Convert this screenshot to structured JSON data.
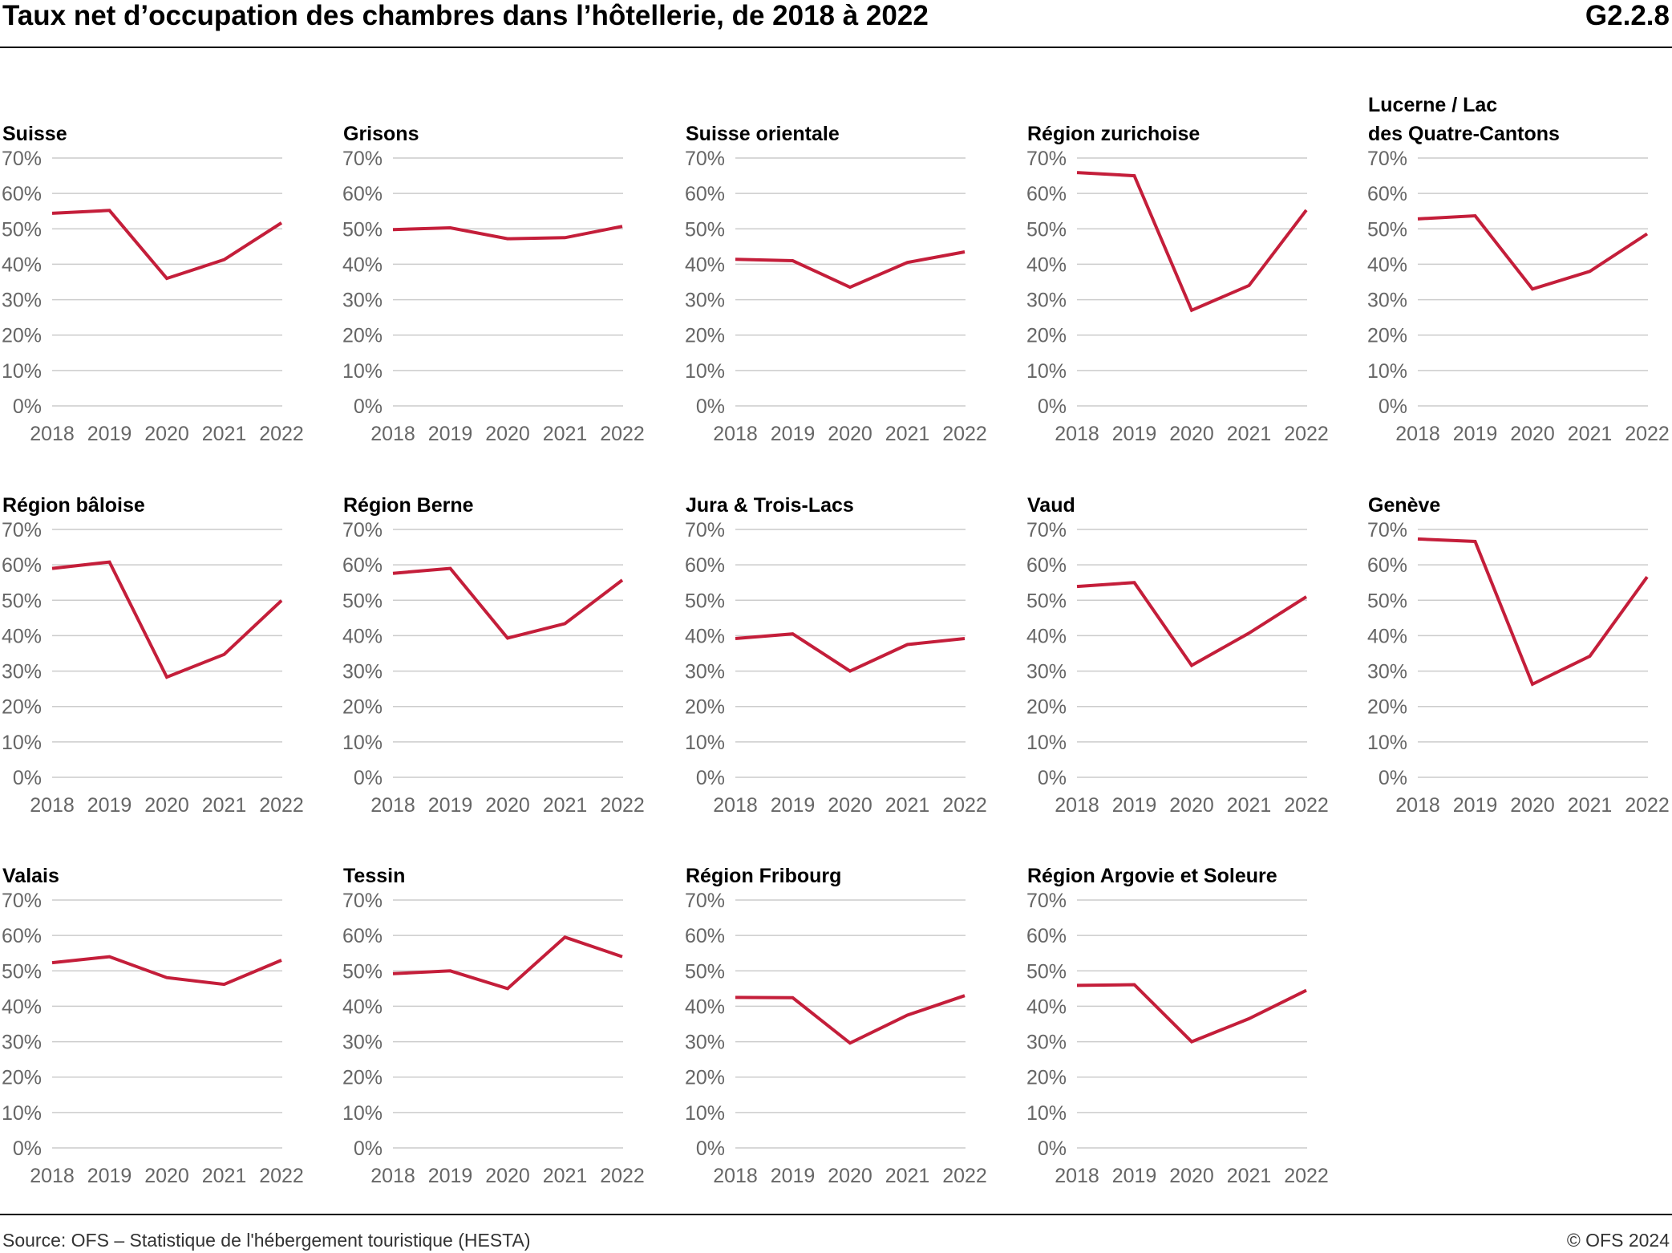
{
  "header": {
    "title": "Taux net d’occupation des chambres dans l’hôtellerie, de 2018 à 2022",
    "code": "G2.2.8"
  },
  "footer": {
    "source": "Source: OFS – Statistique de l'hébergement touristique (HESTA)",
    "copyright": "© OFS 2024"
  },
  "colors": {
    "line": "#C41E3A",
    "grid": "#CCCCCC",
    "tick": "#666666"
  },
  "chart_data": [
    {
      "type": "line",
      "title": "Suisse",
      "x": [
        "2018",
        "2019",
        "2020",
        "2021",
        "2022"
      ],
      "values": [
        54.4,
        55.2,
        36.0,
        41.3,
        51.7
      ],
      "yticks": [
        "0%",
        "10%",
        "20%",
        "30%",
        "40%",
        "50%",
        "60%",
        "70%"
      ],
      "ylim": [
        0,
        70
      ]
    },
    {
      "type": "line",
      "title": "Grisons",
      "x": [
        "2018",
        "2019",
        "2020",
        "2021",
        "2022"
      ],
      "values": [
        49.8,
        50.3,
        47.2,
        47.5,
        50.7
      ],
      "yticks": [
        "0%",
        "10%",
        "20%",
        "30%",
        "40%",
        "50%",
        "60%",
        "70%"
      ],
      "ylim": [
        0,
        70
      ]
    },
    {
      "type": "line",
      "title": "Suisse orientale",
      "x": [
        "2018",
        "2019",
        "2020",
        "2021",
        "2022"
      ],
      "values": [
        41.4,
        41.0,
        33.5,
        40.5,
        43.5
      ],
      "yticks": [
        "0%",
        "10%",
        "20%",
        "30%",
        "40%",
        "50%",
        "60%",
        "70%"
      ],
      "ylim": [
        0,
        70
      ]
    },
    {
      "type": "line",
      "title": "Région zurichoise",
      "x": [
        "2018",
        "2019",
        "2020",
        "2021",
        "2022"
      ],
      "values": [
        65.9,
        65.0,
        27.0,
        34.0,
        55.3
      ],
      "yticks": [
        "0%",
        "10%",
        "20%",
        "30%",
        "40%",
        "50%",
        "60%",
        "70%"
      ],
      "ylim": [
        0,
        70
      ]
    },
    {
      "type": "line",
      "title": "Lucerne / Lac\ndes Quatre-Cantons",
      "x": [
        "2018",
        "2019",
        "2020",
        "2021",
        "2022"
      ],
      "values": [
        52.8,
        53.7,
        33.0,
        38.0,
        48.6
      ],
      "yticks": [
        "0%",
        "10%",
        "20%",
        "30%",
        "40%",
        "50%",
        "60%",
        "70%"
      ],
      "ylim": [
        0,
        70
      ]
    },
    {
      "type": "line",
      "title": "Région bâloise",
      "x": [
        "2018",
        "2019",
        "2020",
        "2021",
        "2022"
      ],
      "values": [
        59.0,
        60.8,
        28.3,
        34.7,
        49.9
      ],
      "yticks": [
        "0%",
        "10%",
        "20%",
        "30%",
        "40%",
        "50%",
        "60%",
        "70%"
      ],
      "ylim": [
        0,
        70
      ]
    },
    {
      "type": "line",
      "title": "Région Berne",
      "x": [
        "2018",
        "2019",
        "2020",
        "2021",
        "2022"
      ],
      "values": [
        57.6,
        59.0,
        39.3,
        43.4,
        55.7
      ],
      "yticks": [
        "0%",
        "10%",
        "20%",
        "30%",
        "40%",
        "50%",
        "60%",
        "70%"
      ],
      "ylim": [
        0,
        70
      ]
    },
    {
      "type": "line",
      "title": "Jura & Trois-Lacs",
      "x": [
        "2018",
        "2019",
        "2020",
        "2021",
        "2022"
      ],
      "values": [
        39.2,
        40.5,
        30.0,
        37.5,
        39.2
      ],
      "yticks": [
        "0%",
        "10%",
        "20%",
        "30%",
        "40%",
        "50%",
        "60%",
        "70%"
      ],
      "ylim": [
        0,
        70
      ]
    },
    {
      "type": "line",
      "title": "Vaud",
      "x": [
        "2018",
        "2019",
        "2020",
        "2021",
        "2022"
      ],
      "values": [
        53.9,
        55.0,
        31.6,
        40.7,
        51.0
      ],
      "yticks": [
        "0%",
        "10%",
        "20%",
        "30%",
        "40%",
        "50%",
        "60%",
        "70%"
      ],
      "ylim": [
        0,
        70
      ]
    },
    {
      "type": "line",
      "title": "Genève",
      "x": [
        "2018",
        "2019",
        "2020",
        "2021",
        "2022"
      ],
      "values": [
        67.3,
        66.6,
        26.3,
        34.2,
        56.6
      ],
      "yticks": [
        "0%",
        "10%",
        "20%",
        "30%",
        "40%",
        "50%",
        "60%",
        "70%"
      ],
      "ylim": [
        0,
        70
      ]
    },
    {
      "type": "line",
      "title": "Valais",
      "x": [
        "2018",
        "2019",
        "2020",
        "2021",
        "2022"
      ],
      "values": [
        52.3,
        54.0,
        48.1,
        46.2,
        53.0
      ],
      "yticks": [
        "0%",
        "10%",
        "20%",
        "30%",
        "40%",
        "50%",
        "60%",
        "70%"
      ],
      "ylim": [
        0,
        70
      ]
    },
    {
      "type": "line",
      "title": "Tessin",
      "x": [
        "2018",
        "2019",
        "2020",
        "2021",
        "2022"
      ],
      "values": [
        49.2,
        50.0,
        45.0,
        59.5,
        54.0
      ],
      "yticks": [
        "0%",
        "10%",
        "20%",
        "30%",
        "40%",
        "50%",
        "60%",
        "70%"
      ],
      "ylim": [
        0,
        70
      ]
    },
    {
      "type": "line",
      "title": "Région Fribourg",
      "x": [
        "2018",
        "2019",
        "2020",
        "2021",
        "2022"
      ],
      "values": [
        42.5,
        42.4,
        29.6,
        37.5,
        43.0
      ],
      "yticks": [
        "0%",
        "10%",
        "20%",
        "30%",
        "40%",
        "50%",
        "60%",
        "70%"
      ],
      "ylim": [
        0,
        70
      ]
    },
    {
      "type": "line",
      "title": "Région Argovie et Soleure",
      "x": [
        "2018",
        "2019",
        "2020",
        "2021",
        "2022"
      ],
      "values": [
        45.9,
        46.1,
        30.0,
        36.5,
        44.5
      ],
      "yticks": [
        "0%",
        "10%",
        "20%",
        "30%",
        "40%",
        "50%",
        "60%",
        "70%"
      ],
      "ylim": [
        0,
        70
      ]
    }
  ]
}
